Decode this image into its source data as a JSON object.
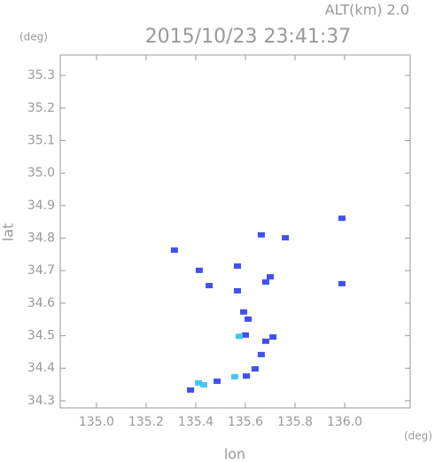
{
  "chart_data": {
    "type": "scatter",
    "title": "2015/10/23 23:41:37",
    "subtitle": "ALT(km) 2.0",
    "x_label": "lon",
    "y_label": "lat",
    "x_unit": "(deg)",
    "y_unit": "(deg)",
    "xlim": [
      134.854,
      136.264
    ],
    "ylim": [
      34.278,
      35.363
    ],
    "xticks": [
      {
        "value": 135,
        "label": "135.0"
      },
      135.2,
      135.4,
      135.6,
      135.8,
      {
        "value": 136,
        "label": "136.0"
      }
    ],
    "yticks": [
      34.3,
      34.4,
      34.5,
      34.6,
      34.7,
      34.8,
      34.9,
      {
        "value": 35,
        "label": "35.0"
      },
      35.1,
      35.2,
      35.3
    ],
    "series": [
      {
        "color": "#4050f0",
        "x": [
          135.989,
          135.989,
          135.454,
          135.568,
          135.682,
          135.7,
          135.593,
          135.611,
          135.6,
          135.682,
          135.711,
          135.664,
          135.639,
          135.604,
          135.486,
          135.379,
          135.568,
          135.664,
          135.414,
          135.761,
          135.314
        ],
        "y": [
          34.861,
          34.66,
          34.654,
          34.638,
          34.665,
          34.681,
          34.573,
          34.551,
          34.502,
          34.483,
          34.496,
          34.442,
          34.398,
          34.376,
          34.36,
          34.333,
          34.714,
          34.81,
          34.701,
          34.801,
          34.763
        ]
      },
      {
        "color": "#40c8f0",
        "x": [
          135.575,
          135.557,
          135.432,
          135.411
        ],
        "y": [
          34.498,
          34.374,
          34.349,
          34.355
        ]
      }
    ]
  }
}
